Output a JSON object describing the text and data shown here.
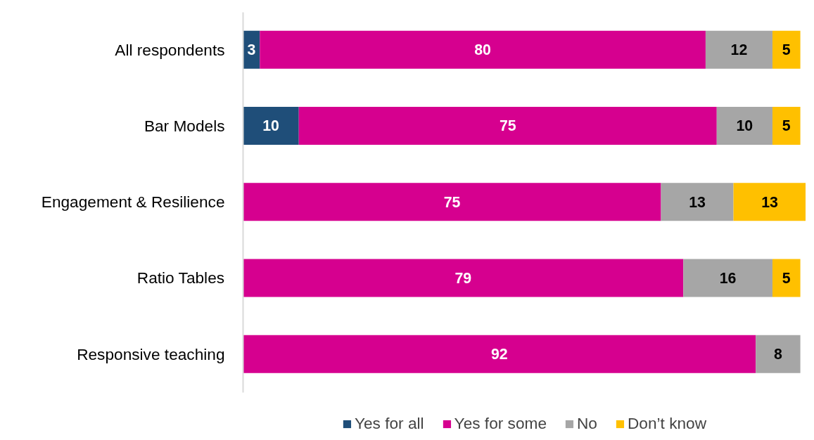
{
  "chart_data": {
    "type": "bar",
    "orientation": "horizontal",
    "stacked": true,
    "data_labels": true,
    "legend": "bottom",
    "categories": [
      "All respondents",
      "Bar Models",
      "Engagement & Resilience",
      "Ratio Tables",
      "Responsive teaching"
    ],
    "series": [
      {
        "name": "Yes for all",
        "color": "#1f4e79",
        "values": [
          3,
          10,
          null,
          null,
          null
        ]
      },
      {
        "name": "Yes for some",
        "color": "#d6008f",
        "values": [
          80,
          75,
          75,
          79,
          92
        ]
      },
      {
        "name": "No",
        "color": "#a6a6a6",
        "values": [
          12,
          10,
          13,
          16,
          8
        ]
      },
      {
        "name": "Don’t know",
        "color": "#ffc000",
        "values": [
          5,
          5,
          13,
          5,
          null
        ]
      }
    ]
  }
}
